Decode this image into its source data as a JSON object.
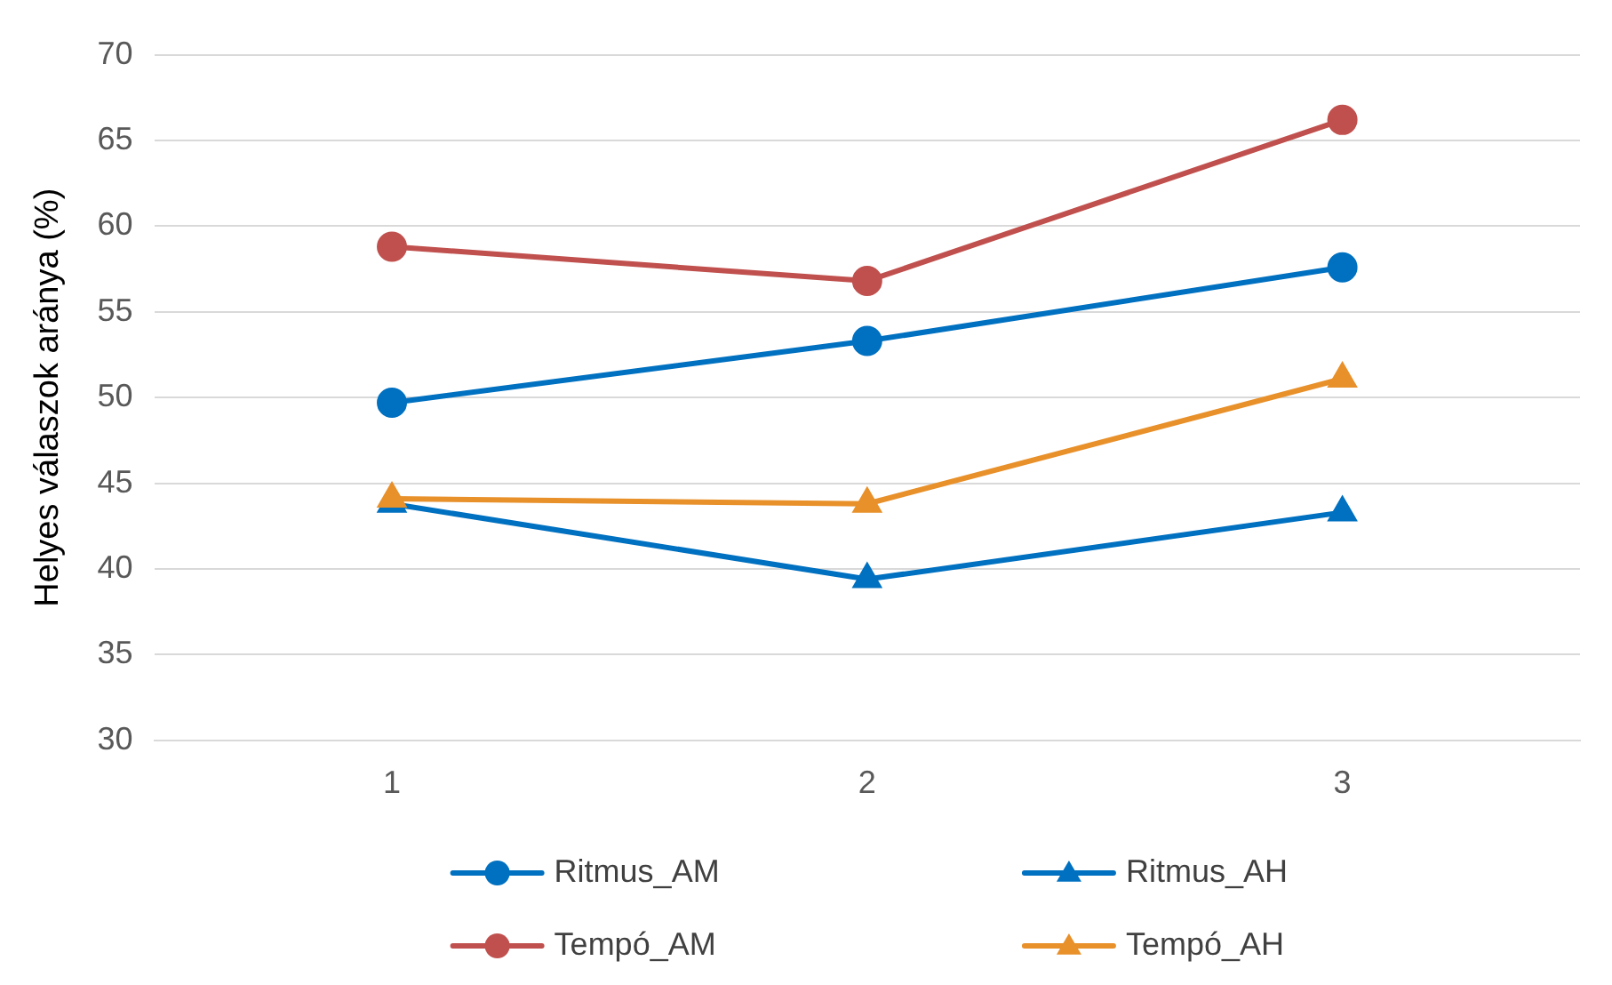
{
  "chart_data": {
    "type": "line",
    "ylabel": "Helyes válaszok aránya (%)",
    "categories": [
      "1",
      "2",
      "3"
    ],
    "ylim": [
      30,
      70
    ],
    "yticks": [
      30,
      35,
      40,
      45,
      50,
      55,
      60,
      65,
      70
    ],
    "grid": "y",
    "legend": "bottom",
    "line_style": "solid",
    "series": [
      {
        "name": "Ritmus_AM",
        "color": "#0070c0",
        "marker": "circle",
        "values": [
          49.7,
          53.3,
          57.6
        ]
      },
      {
        "name": "Ritmus_AH",
        "color": "#0070c0",
        "marker": "triangle",
        "values": [
          43.8,
          39.4,
          43.3
        ]
      },
      {
        "name": "Tempó_AM",
        "color": "#c0504d",
        "marker": "circle",
        "values": [
          58.8,
          56.8,
          66.2
        ]
      },
      {
        "name": "Tempó_AH",
        "color": "#e8902a",
        "marker": "triangle",
        "values": [
          44.1,
          43.8,
          51.1
        ]
      }
    ]
  }
}
